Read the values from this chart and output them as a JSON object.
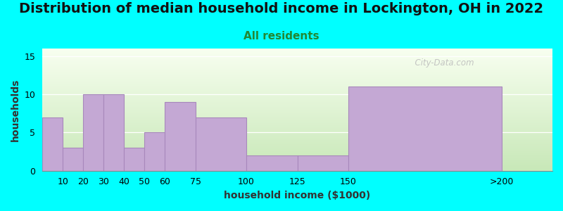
{
  "title": "Distribution of median household income in Lockington, OH in 2022",
  "subtitle": "All residents",
  "xlabel": "household income ($1000)",
  "ylabel": "households",
  "bar_lefts": [
    0,
    10,
    20,
    30,
    40,
    50,
    60,
    75,
    100,
    125,
    150
  ],
  "bar_widths": [
    10,
    10,
    10,
    10,
    10,
    10,
    15,
    25,
    25,
    25,
    75
  ],
  "values": [
    7,
    3,
    10,
    10,
    3,
    5,
    9,
    7,
    2,
    2,
    11
  ],
  "xtick_positions": [
    10,
    20,
    30,
    40,
    50,
    60,
    75,
    100,
    125,
    150,
    225
  ],
  "xtick_labels": [
    "10",
    "20",
    "30",
    "40",
    "50",
    "60",
    "75",
    "100",
    "125",
    "150",
    ">200"
  ],
  "bar_color": "#C4A8D4",
  "bar_edgecolor": "#A888BC",
  "background_color": "#00FFFF",
  "plot_bg_gradient_top": "#F0FFF0",
  "plot_bg_gradient_bottom": "#DDEEDD",
  "ylim": [
    0,
    16
  ],
  "xlim": [
    0,
    250
  ],
  "yticks": [
    0,
    5,
    10,
    15
  ],
  "title_fontsize": 14,
  "subtitle_fontsize": 11,
  "subtitle_color": "#228833",
  "axis_label_fontsize": 10,
  "tick_fontsize": 9,
  "watermark": "  City-Data.com"
}
